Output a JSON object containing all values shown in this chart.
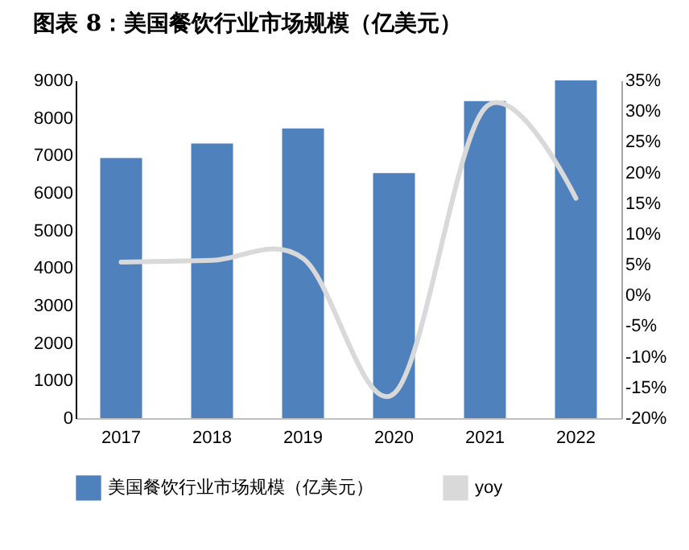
{
  "chart_data": {
    "type": "bar",
    "title": "图表 8：美国餐饮行业市场规模（亿美元）",
    "categories": [
      "2017",
      "2018",
      "2019",
      "2020",
      "2021",
      "2022"
    ],
    "series": [
      {
        "name": "美国餐饮行业市场规模（亿美元）",
        "color": "#4f81bd",
        "values": [
          6930,
          7320,
          7720,
          6530,
          8450,
          9000
        ]
      },
      {
        "name": "yoy",
        "type": "line",
        "axis": "y2",
        "color": "#d9d9d9",
        "values": [
          5.4,
          5.7,
          6,
          -16,
          30.5,
          15.8
        ]
      }
    ],
    "ylim": [
      0,
      9000
    ],
    "yticks": [
      0,
      1000,
      2000,
      3000,
      4000,
      5000,
      6000,
      7000,
      8000,
      9000
    ],
    "y2lim": [
      -20,
      35
    ],
    "y2ticks": [
      {
        "value": -20,
        "label": "-20%"
      },
      {
        "value": -15,
        "label": "-15%"
      },
      {
        "value": -10,
        "label": "-10%"
      },
      {
        "value": -5,
        "label": "-5%"
      },
      {
        "value": 0,
        "label": "0%"
      },
      {
        "value": 5,
        "label": "5%"
      },
      {
        "value": 10,
        "label": "10%"
      },
      {
        "value": 15,
        "label": "15%"
      },
      {
        "value": 20,
        "label": "20%"
      },
      {
        "value": 25,
        "label": "25%"
      },
      {
        "value": 30,
        "label": "30%"
      },
      {
        "value": 35,
        "label": "35%"
      }
    ],
    "grid": false,
    "legend": "bottom",
    "line_style": "solid",
    "marker": "none"
  }
}
